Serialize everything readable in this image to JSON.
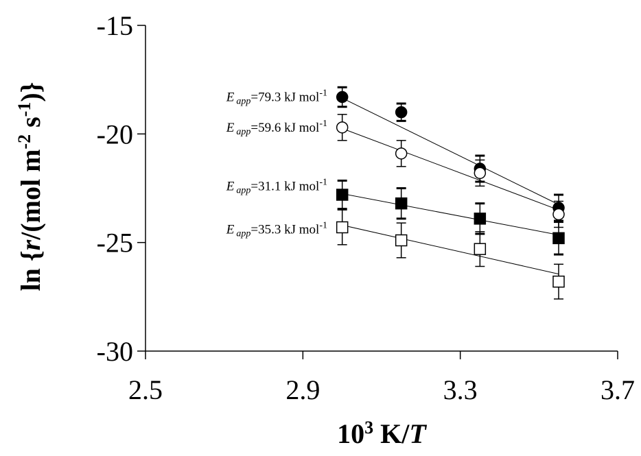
{
  "chart_data": {
    "type": "scatter",
    "xlabel": {
      "prefix": "10",
      "sup": "3",
      "mid": " K/",
      "var": "T"
    },
    "ylabel": {
      "p1": "ln {",
      "var": "r",
      "p2": "/(mol m",
      "sup1": "-2",
      "p3": " s",
      "sup2": "-1",
      "p4": ")}"
    },
    "xlim": [
      2.5,
      3.7
    ],
    "ylim": [
      -30,
      -15
    ],
    "xticks": [
      "2.5",
      "2.9",
      "3.3",
      "3.7"
    ],
    "yticks": [
      "-15",
      "-20",
      "-25",
      "-30"
    ],
    "x": [
      3.0,
      3.15,
      3.35,
      3.55
    ],
    "series": [
      {
        "marker": "filled-circle",
        "values": [
          -18.3,
          -19.0,
          -21.6,
          -23.4
        ],
        "err": [
          0.45,
          0.4,
          0.6,
          0.6
        ],
        "fit": [
          [
            3.0,
            -18.35
          ],
          [
            3.55,
            -23.25
          ]
        ]
      },
      {
        "marker": "open-circle",
        "values": [
          -19.7,
          -20.9,
          -21.8,
          -23.7
        ],
        "err": [
          0.6,
          0.6,
          0.6,
          0.6
        ],
        "fit": [
          [
            3.0,
            -19.75
          ],
          [
            3.55,
            -23.5
          ]
        ]
      },
      {
        "marker": "filled-square",
        "values": [
          -22.8,
          -23.2,
          -23.9,
          -24.8
        ],
        "err": [
          0.65,
          0.7,
          0.7,
          0.75
        ],
        "fit": [
          [
            3.0,
            -22.75
          ],
          [
            3.55,
            -24.65
          ]
        ]
      },
      {
        "marker": "open-square",
        "values": [
          -24.3,
          -24.9,
          -25.3,
          -26.8
        ],
        "err": [
          0.8,
          0.8,
          0.8,
          0.8
        ],
        "fit": [
          [
            3.0,
            -24.2
          ],
          [
            3.55,
            -26.45
          ]
        ]
      }
    ],
    "annotations": [
      {
        "e": "E",
        "sub": "app",
        "text": "=79.3 kJ mol",
        "sup": "-1",
        "y": -18.3
      },
      {
        "e": "E",
        "sub": "app",
        "text": "=59.6 kJ mol",
        "sup": "-1",
        "y": -19.7
      },
      {
        "e": "E",
        "sub": "app",
        "text": "=31.1 kJ mol",
        "sup": "-1",
        "y": -22.4
      },
      {
        "e": "E",
        "sub": "app",
        "text": "=35.3 kJ mol",
        "sup": "-1",
        "y": -24.4
      }
    ]
  }
}
